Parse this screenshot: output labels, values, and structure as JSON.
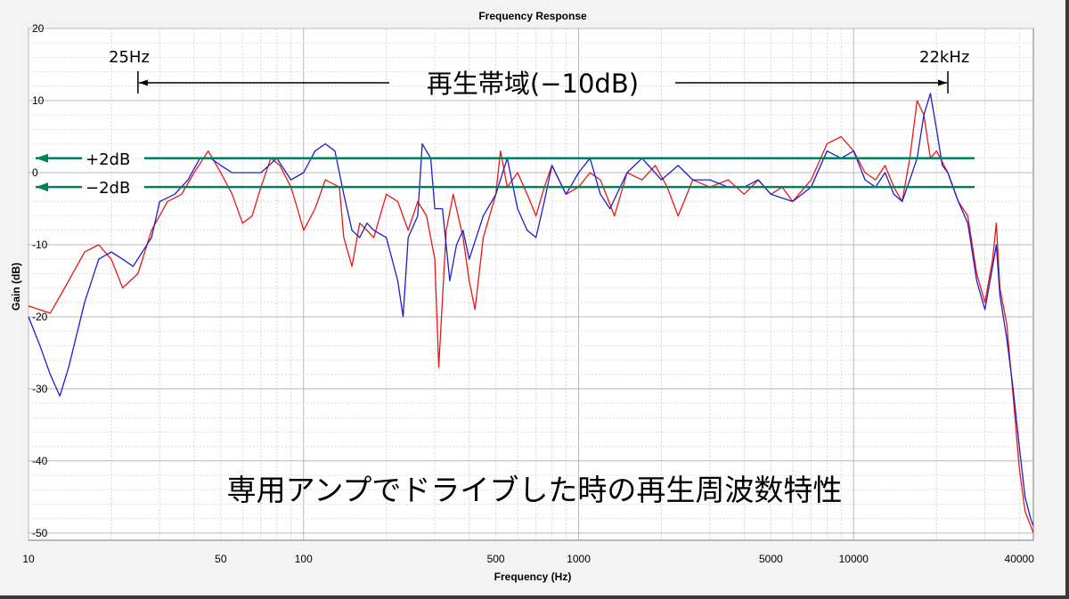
{
  "chart_data": {
    "type": "line",
    "title": "Frequency Response",
    "xlabel": "Frequency (Hz)",
    "ylabel": "Gain (dB)",
    "xscale": "log",
    "xlim": [
      10,
      45000
    ],
    "ylim": [
      -51,
      20
    ],
    "grid": true,
    "x_ticks": [
      {
        "value": 10,
        "label": "10"
      },
      {
        "value": 50,
        "label": "50"
      },
      {
        "value": 100,
        "label": "100"
      },
      {
        "value": 500,
        "label": "500"
      },
      {
        "value": 1000,
        "label": "1000"
      },
      {
        "value": 5000,
        "label": "5000"
      },
      {
        "value": 10000,
        "label": "10000"
      },
      {
        "value": 40000,
        "label": "40000"
      }
    ],
    "y_ticks": [
      {
        "value": 20,
        "label": "20"
      },
      {
        "value": 10,
        "label": "10"
      },
      {
        "value": 0,
        "label": "0"
      },
      {
        "value": -10,
        "label": "-10"
      },
      {
        "value": -20,
        "label": "-20"
      },
      {
        "value": -30,
        "label": "-30"
      },
      {
        "value": -40,
        "label": "-40"
      },
      {
        "value": -50,
        "label": "-50"
      }
    ],
    "series": [
      {
        "color": "#e81818",
        "points": [
          [
            10,
            -18.5
          ],
          [
            12,
            -19.5
          ],
          [
            14,
            -15
          ],
          [
            16,
            -11
          ],
          [
            18,
            -10
          ],
          [
            20,
            -12
          ],
          [
            22,
            -16
          ],
          [
            25,
            -14
          ],
          [
            28,
            -8
          ],
          [
            32,
            -4
          ],
          [
            36,
            -3
          ],
          [
            40,
            0
          ],
          [
            45,
            3
          ],
          [
            50,
            0
          ],
          [
            55,
            -3
          ],
          [
            60,
            -7
          ],
          [
            65,
            -6
          ],
          [
            70,
            -2
          ],
          [
            76,
            2
          ],
          [
            82,
            1
          ],
          [
            90,
            -2
          ],
          [
            95,
            -5
          ],
          [
            100,
            -8
          ],
          [
            110,
            -5
          ],
          [
            120,
            -1
          ],
          [
            135,
            -2
          ],
          [
            140,
            -9
          ],
          [
            150,
            -13
          ],
          [
            160,
            -7
          ],
          [
            170,
            -8
          ],
          [
            180,
            -9
          ],
          [
            200,
            -3
          ],
          [
            220,
            -4
          ],
          [
            240,
            -8
          ],
          [
            260,
            -4
          ],
          [
            280,
            -6
          ],
          [
            300,
            -12
          ],
          [
            310,
            -27
          ],
          [
            330,
            -8
          ],
          [
            350,
            -3
          ],
          [
            380,
            -9
          ],
          [
            400,
            -15
          ],
          [
            420,
            -19
          ],
          [
            450,
            -9
          ],
          [
            500,
            -3
          ],
          [
            520,
            3
          ],
          [
            550,
            -2
          ],
          [
            600,
            0
          ],
          [
            650,
            -3
          ],
          [
            700,
            -6
          ],
          [
            750,
            -2
          ],
          [
            800,
            1
          ],
          [
            900,
            -3
          ],
          [
            1000,
            -2
          ],
          [
            1100,
            0
          ],
          [
            1200,
            -1
          ],
          [
            1350,
            -6
          ],
          [
            1500,
            0
          ],
          [
            1700,
            -1
          ],
          [
            1900,
            1
          ],
          [
            2100,
            -2
          ],
          [
            2300,
            -6
          ],
          [
            2600,
            -1
          ],
          [
            3000,
            -2
          ],
          [
            3500,
            -1
          ],
          [
            4000,
            -3
          ],
          [
            4500,
            -1
          ],
          [
            5000,
            -3
          ],
          [
            5500,
            -2
          ],
          [
            6000,
            -4
          ],
          [
            7000,
            -1
          ],
          [
            8000,
            4
          ],
          [
            9000,
            5
          ],
          [
            10000,
            3
          ],
          [
            11000,
            0
          ],
          [
            12000,
            -1
          ],
          [
            13000,
            1
          ],
          [
            14000,
            -2
          ],
          [
            15000,
            -4
          ],
          [
            16000,
            2
          ],
          [
            17000,
            10
          ],
          [
            18000,
            8
          ],
          [
            19000,
            2
          ],
          [
            20000,
            3
          ],
          [
            22000,
            0
          ],
          [
            24000,
            -4
          ],
          [
            26000,
            -6
          ],
          [
            28000,
            -14
          ],
          [
            30000,
            -18
          ],
          [
            32000,
            -12
          ],
          [
            33000,
            -7
          ],
          [
            34000,
            -16
          ],
          [
            36000,
            -21
          ],
          [
            38000,
            -31
          ],
          [
            40000,
            -41
          ],
          [
            42000,
            -47
          ],
          [
            44000,
            -49
          ],
          [
            45000,
            -50
          ]
        ]
      },
      {
        "color": "#1e1ec8",
        "points": [
          [
            10,
            -20
          ],
          [
            11,
            -24
          ],
          [
            12,
            -28
          ],
          [
            13,
            -31
          ],
          [
            14,
            -27
          ],
          [
            16,
            -18
          ],
          [
            18,
            -12
          ],
          [
            20,
            -11
          ],
          [
            22,
            -12
          ],
          [
            24,
            -13
          ],
          [
            28,
            -9
          ],
          [
            30,
            -4
          ],
          [
            34,
            -3
          ],
          [
            38,
            -1
          ],
          [
            42,
            2
          ],
          [
            46,
            2
          ],
          [
            50,
            1
          ],
          [
            55,
            0
          ],
          [
            60,
            0
          ],
          [
            70,
            0
          ],
          [
            80,
            2
          ],
          [
            90,
            -1
          ],
          [
            100,
            0
          ],
          [
            110,
            3
          ],
          [
            120,
            4
          ],
          [
            130,
            3
          ],
          [
            140,
            -3
          ],
          [
            150,
            -8
          ],
          [
            160,
            -9
          ],
          [
            170,
            -7
          ],
          [
            180,
            -8
          ],
          [
            200,
            -9
          ],
          [
            220,
            -15
          ],
          [
            230,
            -20
          ],
          [
            240,
            -9
          ],
          [
            260,
            -6
          ],
          [
            270,
            4
          ],
          [
            290,
            2
          ],
          [
            300,
            -5
          ],
          [
            320,
            -5
          ],
          [
            340,
            -15
          ],
          [
            360,
            -10
          ],
          [
            380,
            -8
          ],
          [
            400,
            -12
          ],
          [
            450,
            -6
          ],
          [
            500,
            -3
          ],
          [
            550,
            2
          ],
          [
            600,
            -5
          ],
          [
            650,
            -8
          ],
          [
            700,
            -9
          ],
          [
            750,
            -4
          ],
          [
            800,
            1
          ],
          [
            900,
            -3
          ],
          [
            1000,
            0
          ],
          [
            1100,
            2
          ],
          [
            1200,
            -3
          ],
          [
            1300,
            -5
          ],
          [
            1500,
            0
          ],
          [
            1700,
            2
          ],
          [
            2000,
            -1
          ],
          [
            2300,
            1
          ],
          [
            2600,
            -1
          ],
          [
            3000,
            -1
          ],
          [
            3500,
            -2
          ],
          [
            4000,
            -2
          ],
          [
            4500,
            -1
          ],
          [
            5000,
            -3
          ],
          [
            6000,
            -4
          ],
          [
            7000,
            -2
          ],
          [
            8000,
            3
          ],
          [
            9000,
            2
          ],
          [
            10000,
            3
          ],
          [
            11000,
            -1
          ],
          [
            12000,
            -2
          ],
          [
            13000,
            0
          ],
          [
            14000,
            -3
          ],
          [
            15000,
            -4
          ],
          [
            16000,
            -1
          ],
          [
            17000,
            2
          ],
          [
            18000,
            8
          ],
          [
            19000,
            11
          ],
          [
            20000,
            6
          ],
          [
            21000,
            1
          ],
          [
            22000,
            0
          ],
          [
            24000,
            -4
          ],
          [
            26000,
            -7
          ],
          [
            28000,
            -15
          ],
          [
            30000,
            -19
          ],
          [
            32000,
            -13
          ],
          [
            33000,
            -10
          ],
          [
            34000,
            -17
          ],
          [
            36000,
            -23
          ],
          [
            38000,
            -30
          ],
          [
            40000,
            -38
          ],
          [
            42000,
            -45
          ],
          [
            44000,
            -48
          ],
          [
            45000,
            -49
          ]
        ]
      }
    ]
  },
  "annotations": {
    "band_label": "再生帯域(−10dB)",
    "left_freq": "25Hz",
    "right_freq": "22kHz",
    "left_freq_value": 25,
    "right_freq_value": 22000,
    "plus_label": "+2dB",
    "plus_value": 2,
    "minus_label": "−2dB",
    "minus_value": -2,
    "caption": "専用アンプでドライブした時の再生周波数特性",
    "accent_color": "#008060"
  }
}
